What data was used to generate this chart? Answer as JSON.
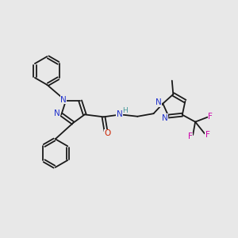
{
  "bg_color": "#e8e8e8",
  "bond_color": "#1a1a1a",
  "N_color": "#2233cc",
  "O_color": "#cc2200",
  "F_color": "#cc00aa",
  "H_color": "#449999",
  "figsize": [
    3.0,
    3.0
  ],
  "dpi": 100,
  "lw": 1.3,
  "fs": 7.5,
  "xlim": [
    0,
    10
  ],
  "ylim": [
    0,
    10
  ]
}
